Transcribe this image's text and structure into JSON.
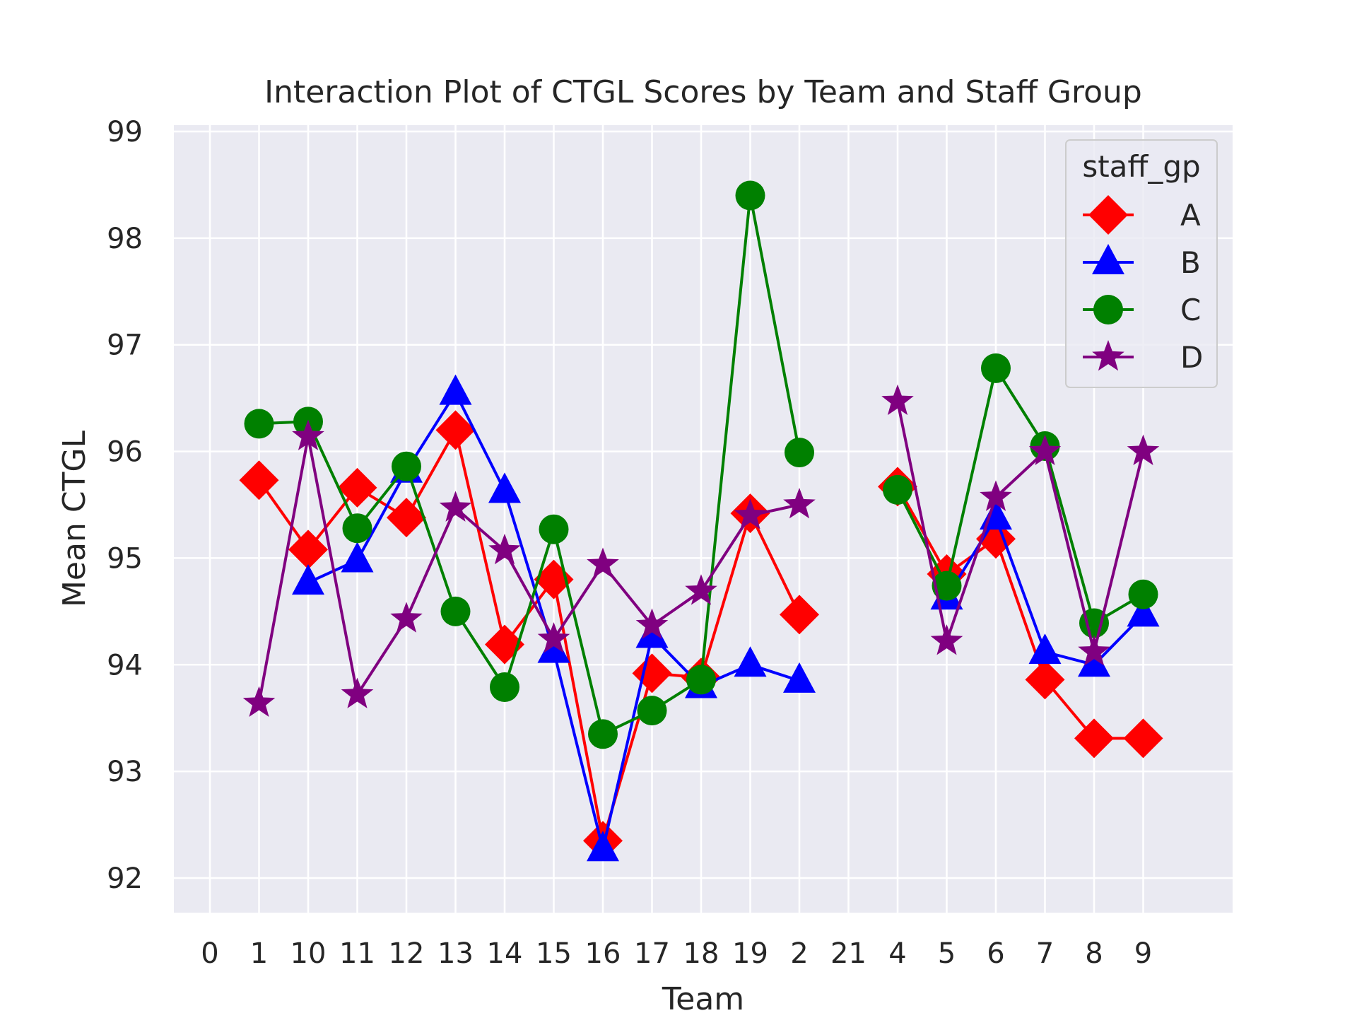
{
  "chart_data": {
    "type": "line",
    "title": "Interaction Plot of CTGL Scores by Team and Staff Group",
    "xlabel": "Team",
    "ylabel": "Mean CTGL",
    "categories": [
      "0",
      "1",
      "10",
      "11",
      "12",
      "13",
      "14",
      "15",
      "16",
      "17",
      "18",
      "19",
      "2",
      "21",
      "4",
      "5",
      "6",
      "7",
      "8",
      "9"
    ],
    "ylim": [
      91.7,
      99
    ],
    "yticks": [
      92,
      93,
      94,
      95,
      96,
      97,
      98,
      99
    ],
    "grid": true,
    "legend": {
      "title": "staff_gp",
      "position": "top-right"
    },
    "series": [
      {
        "name": "A",
        "color": "#ff0000",
        "marker": "diamond",
        "values": [
          null,
          95.73,
          95.08,
          95.66,
          95.38,
          96.2,
          94.19,
          94.8,
          92.35,
          93.92,
          93.88,
          95.42,
          94.47,
          null,
          95.67,
          94.85,
          95.18,
          93.86,
          93.31,
          93.31
        ]
      },
      {
        "name": "B",
        "color": "#0000ff",
        "marker": "triangle",
        "values": [
          null,
          null,
          94.77,
          94.98,
          95.82,
          96.55,
          95.63,
          94.13,
          92.27,
          94.27,
          93.8,
          94.0,
          93.85,
          null,
          null,
          94.63,
          95.38,
          94.12,
          94.0,
          94.47
        ]
      },
      {
        "name": "C",
        "color": "#008000",
        "marker": "circle",
        "values": [
          null,
          96.26,
          96.28,
          95.28,
          95.86,
          94.5,
          93.79,
          95.27,
          93.35,
          93.57,
          93.86,
          98.4,
          95.99,
          null,
          95.64,
          94.74,
          96.78,
          96.05,
          94.39,
          94.66
        ]
      },
      {
        "name": "D",
        "color": "#800080",
        "marker": "star",
        "values": [
          null,
          93.64,
          96.14,
          93.72,
          94.43,
          95.47,
          95.07,
          94.24,
          94.94,
          94.37,
          94.69,
          95.4,
          95.5,
          null,
          96.47,
          94.22,
          95.57,
          96.0,
          94.12,
          96.0
        ]
      }
    ]
  }
}
